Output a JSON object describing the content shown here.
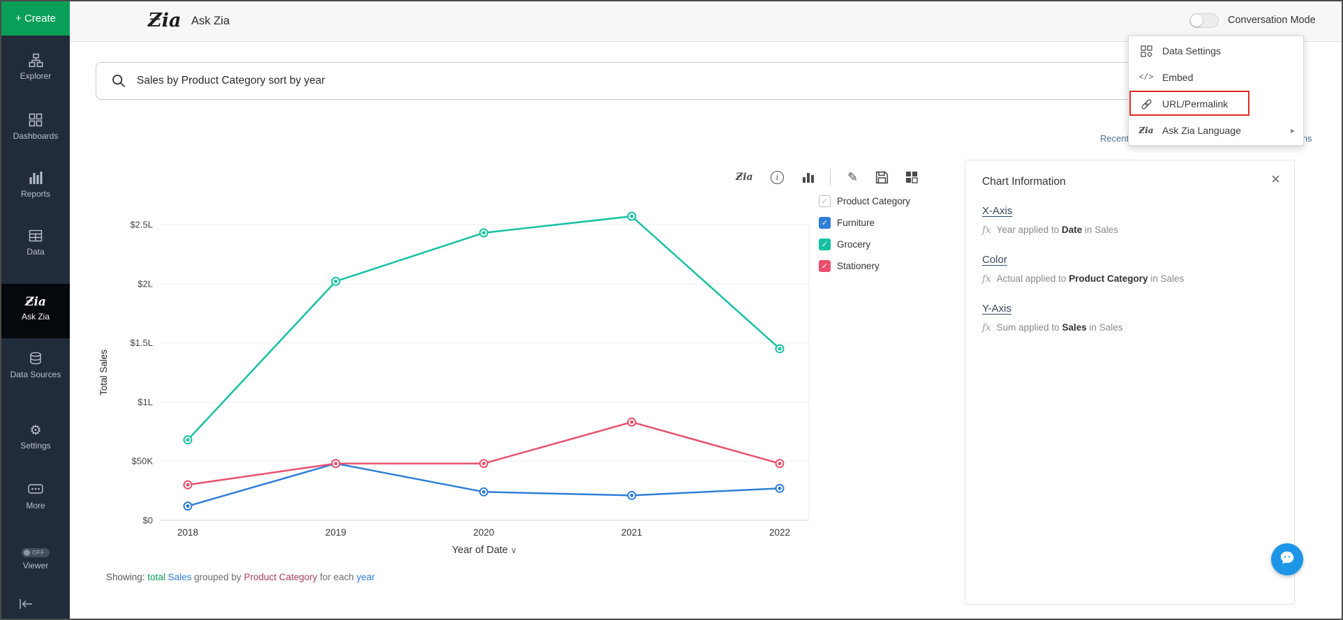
{
  "header": {
    "logo": "Ƶia",
    "title": "Ask Zia",
    "conversation_mode": "Conversation Mode",
    "help": "?"
  },
  "sidebar": {
    "create_label": "+ Create",
    "items": [
      {
        "label": "Explorer"
      },
      {
        "label": "Dashboards"
      },
      {
        "label": "Reports"
      },
      {
        "label": "Data"
      },
      {
        "label": "Ask Zia",
        "active": true
      },
      {
        "label": "Data Sources"
      },
      {
        "label": "Settings"
      },
      {
        "label": "More"
      },
      {
        "label": "Viewer",
        "badge": "OFF"
      }
    ],
    "zia_icon_text": "Ƶia"
  },
  "settings_menu": {
    "items": [
      {
        "label": "Data Settings"
      },
      {
        "label": "Embed",
        "highlighted": true,
        "icon_text": "</>"
      },
      {
        "label": "URL/Permalink"
      },
      {
        "label": "Ask Zia Language",
        "submenu": true
      }
    ],
    "submenu_arrow": "▸"
  },
  "search": {
    "query": "Sales by Product Category sort by year"
  },
  "quick_links": {
    "recent_searches": "Recent Searches",
    "suggestions": "Suggestions"
  },
  "chart_toolbar": {
    "zia_text": "Ƶia",
    "info_text": "i",
    "edit_glyph": "✎"
  },
  "chart_data": {
    "type": "line",
    "x": [
      "2018",
      "2019",
      "2020",
      "2021",
      "2022"
    ],
    "xlabel": "Year of Date",
    "ylabel": "Total Sales",
    "ylim": [
      0,
      265000
    ],
    "grid": true,
    "legend_position": "right",
    "legend_title": "Product Category",
    "yticks": [
      {
        "value": 0,
        "label": "$0"
      },
      {
        "value": 50000,
        "label": "$50K"
      },
      {
        "value": 100000,
        "label": "$1L"
      },
      {
        "value": 150000,
        "label": "$1.5L"
      },
      {
        "value": 200000,
        "label": "$2L"
      },
      {
        "value": 250000,
        "label": "$2.5L"
      }
    ],
    "series": [
      {
        "name": "Furniture",
        "color": "#2f7ed8",
        "values": [
          12000,
          48000,
          24000,
          21000,
          27000
        ]
      },
      {
        "name": "Grocery",
        "color": "#16c1a2",
        "values": [
          68000,
          202000,
          243000,
          257000,
          145000
        ]
      },
      {
        "name": "Stationery",
        "color": "#e8506e",
        "values": [
          30000,
          48000,
          48000,
          83000,
          48000
        ]
      }
    ]
  },
  "xaxis_chevron": "∨",
  "showing": {
    "label": "Showing:",
    "parts": [
      {
        "text": "total",
        "color": "#0a9d57"
      },
      {
        "text": " Sales",
        "color": "#2f7ed8"
      },
      {
        "text": " grouped by ",
        "color": "#6b6b6b"
      },
      {
        "text": "Product Category",
        "color": "#a53f5b"
      },
      {
        "text": " for each ",
        "color": "#6b6b6b"
      },
      {
        "text": "year",
        "color": "#2f7ed8"
      }
    ]
  },
  "chart_info": {
    "title": "Chart Information",
    "close": "×",
    "fn_glyph": "fx",
    "sections": [
      {
        "heading": "X-Axis",
        "before": "Year applied to ",
        "bold": "Date",
        "after": " in Sales"
      },
      {
        "heading": "Color",
        "before": "Actual applied to ",
        "bold": "Product Category",
        "after": " in Sales"
      },
      {
        "heading": "Y-Axis",
        "before": "Sum applied to ",
        "bold": "Sales",
        "after": " in Sales"
      }
    ]
  },
  "colors": {
    "red_highlight": "#e02a1d",
    "sidebar_bg": "#212c3a",
    "active_item_bg": "#05080c",
    "create_green": "#099f58",
    "chat_blue": "#1e96e8",
    "gear_active_blue": "#1d7fc4"
  }
}
